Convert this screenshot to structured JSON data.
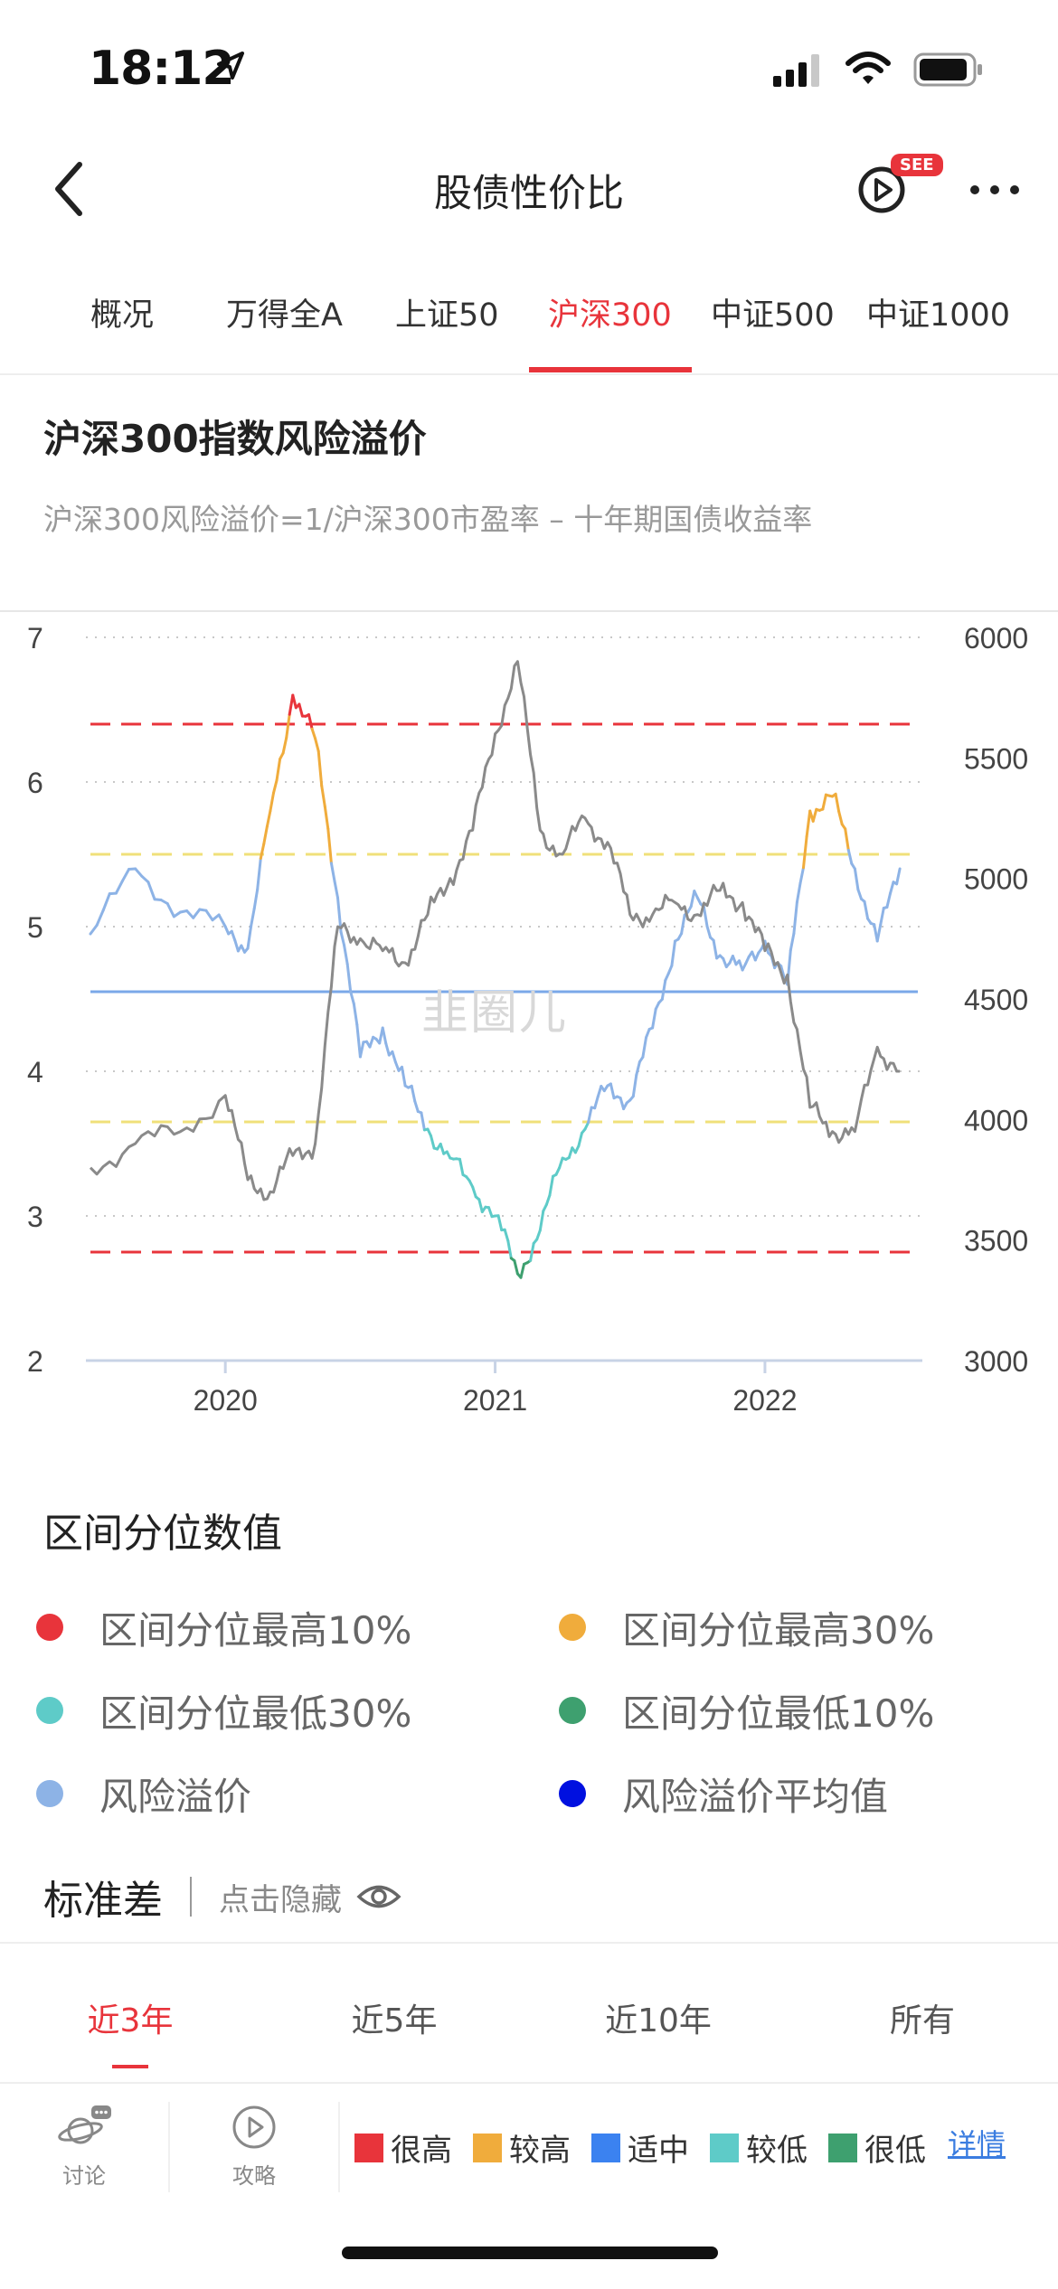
{
  "status_bar": {
    "time": "18:12"
  },
  "nav": {
    "title": "股债性价比",
    "badge": "SEE"
  },
  "tabs": [
    {
      "label": "概况",
      "active": false
    },
    {
      "label": "万得全A",
      "active": false
    },
    {
      "label": "上证50",
      "active": false
    },
    {
      "label": "沪深300",
      "active": true
    },
    {
      "label": "中证500",
      "active": false
    },
    {
      "label": "中证1000",
      "active": false
    }
  ],
  "section": {
    "title": "沪深300指数风险溢价",
    "formula": "沪深300风险溢价=1/沪深300市盈率 – 十年期国债收益率"
  },
  "watermark": "韭圈儿",
  "chart_data": {
    "type": "line",
    "title": "",
    "x_ticks": [
      "2020",
      "2021",
      "2022"
    ],
    "y_left": {
      "label": "",
      "ticks": [
        "7",
        "6",
        "5",
        "4",
        "3",
        "2"
      ],
      "range": [
        2,
        7
      ]
    },
    "y_right": {
      "label": "",
      "ticks": [
        "6000",
        "5500",
        "5000",
        "4500",
        "4000",
        "3500",
        "3000"
      ],
      "range": [
        3000,
        6000
      ]
    },
    "reference_lines": [
      {
        "kind": "区间分位最高10%",
        "value": 6.4,
        "style": "dashed",
        "color": "#e8343b"
      },
      {
        "kind": "区间分位最高30%",
        "value": 5.5,
        "style": "dashed",
        "color": "#f0e07a"
      },
      {
        "kind": "风险溢价平均值",
        "value": 4.55,
        "style": "solid",
        "color": "#7aa8e8"
      },
      {
        "kind": "区间分位最低30%",
        "value": 3.65,
        "style": "dashed",
        "color": "#f0e07a"
      },
      {
        "kind": "区间分位最低10%",
        "value": 2.75,
        "style": "dashed",
        "color": "#e8343b"
      }
    ],
    "series": [
      {
        "name": "风险溢价",
        "axis": "left",
        "x": [
          "2019-07",
          "2019-09",
          "2019-11",
          "2020-01",
          "2020-02",
          "2020-03",
          "2020-04",
          "2020-05",
          "2020-06",
          "2020-07",
          "2020-08",
          "2020-09",
          "2020-10",
          "2020-11",
          "2020-12",
          "2021-01",
          "2021-02",
          "2021-03",
          "2021-04",
          "2021-05",
          "2021-06",
          "2021-07",
          "2021-08",
          "2021-09",
          "2021-10",
          "2021-11",
          "2021-12",
          "2022-01",
          "2022-02",
          "2022-03",
          "2022-04",
          "2022-05",
          "2022-06",
          "2022-07"
        ],
        "values": [
          4.95,
          5.4,
          5.1,
          5.0,
          4.85,
          5.8,
          6.6,
          6.3,
          5.2,
          4.1,
          4.3,
          3.9,
          3.6,
          3.4,
          3.2,
          3.0,
          2.6,
          2.9,
          3.4,
          3.6,
          3.9,
          3.8,
          4.3,
          4.9,
          5.2,
          4.8,
          4.7,
          4.9,
          4.6,
          5.8,
          5.9,
          5.4,
          4.9,
          5.4
        ],
        "color": "#8db3e6"
      },
      {
        "name": "沪深300",
        "axis": "right",
        "x": [
          "2019-07",
          "2019-09",
          "2019-11",
          "2020-01",
          "2020-02",
          "2020-03",
          "2020-04",
          "2020-05",
          "2020-06",
          "2020-07",
          "2020-08",
          "2020-09",
          "2020-10",
          "2020-11",
          "2020-12",
          "2021-01",
          "2021-02",
          "2021-03",
          "2021-04",
          "2021-05",
          "2021-06",
          "2021-07",
          "2021-08",
          "2021-09",
          "2021-10",
          "2021-11",
          "2021-12",
          "2022-01",
          "2022-02",
          "2022-03",
          "2022-04",
          "2022-05",
          "2022-06",
          "2022-07"
        ],
        "values": [
          3800,
          3900,
          3950,
          4100,
          3750,
          3700,
          3850,
          3900,
          4800,
          4750,
          4700,
          4650,
          4850,
          5000,
          5200,
          5600,
          5900,
          5200,
          5100,
          5250,
          5150,
          4850,
          4850,
          4900,
          4850,
          4950,
          4900,
          4700,
          4600,
          4050,
          3950,
          3950,
          4300,
          4200
        ],
        "color": "#8a8a8a"
      }
    ],
    "grid": true
  },
  "legend": {
    "title": "区间分位数值",
    "items": [
      {
        "label": "区间分位最高10%",
        "color": "#e8343b"
      },
      {
        "label": "区间分位最高30%",
        "color": "#f0ac3c"
      },
      {
        "label": "区间分位最低30%",
        "color": "#5ecbc8"
      },
      {
        "label": "区间分位最低10%",
        "color": "#3ea06f"
      },
      {
        "label": "风险溢价",
        "color": "#8db3e6"
      },
      {
        "label": "风险溢价平均值",
        "color": "#0010e0"
      }
    ]
  },
  "std": {
    "label": "标准差",
    "toggle": "点击隐藏"
  },
  "periods": [
    {
      "label": "近3年",
      "active": true
    },
    {
      "label": "近5年",
      "active": false
    },
    {
      "label": "近10年",
      "active": false
    },
    {
      "label": "所有",
      "active": false
    }
  ],
  "bottom_bar": {
    "discuss": "讨论",
    "guide": "攻略",
    "risk_levels": [
      {
        "label": "很高",
        "color": "#e8343b"
      },
      {
        "label": "较高",
        "color": "#f0ac3c"
      },
      {
        "label": "适中",
        "color": "#3b82f0"
      },
      {
        "label": "较低",
        "color": "#5ecbc8"
      },
      {
        "label": "很低",
        "color": "#3ea06f"
      }
    ],
    "detail": "详情"
  }
}
